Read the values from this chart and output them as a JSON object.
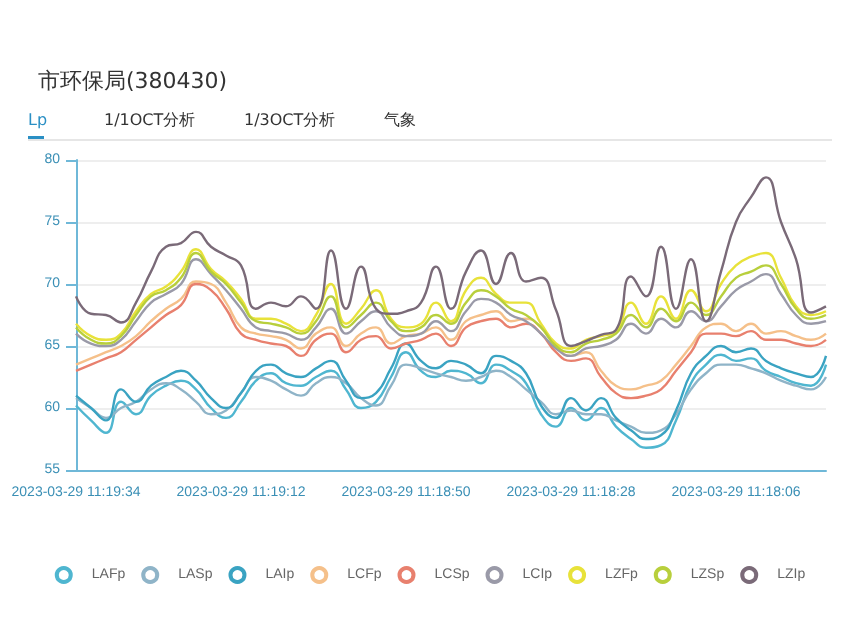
{
  "chart_data": {
    "type": "line",
    "title": "市环保局(380430)",
    "annotations": [
      "Lp",
      "1/1OCT分析",
      "1/3OCT分析",
      "气象"
    ],
    "categories": [
      "2023-03-29 11:19:34",
      null,
      null,
      null,
      null,
      null,
      null,
      null,
      null,
      null,
      null,
      "2023-03-29 11:19:12",
      null,
      null,
      null,
      null,
      null,
      null,
      null,
      null,
      null,
      null,
      "2023-03-29 11:18:50",
      null,
      null,
      null,
      null,
      null,
      null,
      null,
      null,
      null,
      null,
      "2023-03-29 11:18:28",
      null,
      null,
      null,
      null,
      null,
      null,
      null,
      null,
      null,
      null,
      "2023-03-29 11:18:06",
      null,
      null,
      null,
      null,
      null,
      null
    ],
    "ylim": [
      55,
      80
    ],
    "yticks": [
      55,
      60,
      65,
      70,
      75,
      80
    ],
    "grid": "y",
    "legend": "bottom",
    "series": [
      {
        "name": "LAFp",
        "color": "#4fb6d0",
        "values": [
          60.2,
          59.0,
          58.0,
          60.5,
          59.5,
          61.0,
          61.8,
          62.2,
          61.5,
          60.0,
          59.2,
          60.5,
          62.2,
          62.8,
          62.0,
          61.8,
          62.5,
          63.0,
          61.5,
          60.0,
          60.5,
          62.5,
          64.5,
          63.0,
          62.5,
          63.0,
          62.8,
          62.0,
          63.5,
          63.0,
          62.0,
          59.5,
          58.5,
          60.0,
          59.0,
          60.0,
          58.5,
          57.5,
          56.8,
          57.0,
          59.0,
          62.0,
          63.5,
          64.3,
          63.8,
          64.0,
          63.0,
          62.5,
          62.0,
          61.8,
          63.5
        ]
      },
      {
        "name": "LASp",
        "color": "#8fb4c8",
        "values": [
          60.8,
          60.0,
          59.2,
          60.0,
          60.5,
          61.5,
          62.0,
          61.5,
          60.5,
          59.5,
          59.8,
          61.2,
          62.5,
          62.2,
          61.5,
          61.0,
          62.0,
          62.5,
          62.0,
          60.8,
          60.2,
          61.8,
          63.5,
          63.2,
          62.8,
          62.5,
          62.2,
          62.5,
          63.0,
          62.5,
          61.5,
          60.5,
          59.5,
          59.8,
          59.5,
          59.5,
          59.0,
          58.5,
          58.0,
          58.2,
          59.5,
          61.5,
          62.8,
          63.5,
          63.5,
          63.2,
          62.8,
          62.2,
          61.8,
          61.5,
          62.5
        ]
      },
      {
        "name": "LAIp",
        "color": "#3aa3c2",
        "values": [
          61.0,
          60.0,
          59.0,
          61.5,
          60.5,
          61.8,
          62.5,
          63.0,
          62.2,
          60.8,
          60.0,
          61.2,
          63.0,
          63.5,
          62.8,
          62.5,
          63.2,
          63.8,
          62.2,
          60.8,
          61.2,
          63.2,
          65.2,
          63.8,
          63.2,
          63.8,
          63.5,
          62.8,
          64.2,
          63.8,
          62.8,
          60.2,
          59.2,
          60.8,
          59.8,
          60.8,
          59.2,
          58.2,
          57.5,
          57.8,
          59.8,
          62.8,
          64.2,
          65.0,
          64.5,
          64.8,
          63.8,
          63.2,
          62.8,
          62.5,
          64.2
        ]
      },
      {
        "name": "LCFp",
        "color": "#f5c08a",
        "values": [
          63.5,
          64.0,
          64.5,
          65.0,
          65.8,
          67.0,
          68.0,
          68.8,
          70.2,
          70.0,
          68.5,
          66.5,
          66.0,
          65.8,
          65.5,
          64.8,
          66.0,
          66.5,
          65.0,
          66.0,
          66.5,
          65.2,
          65.8,
          66.0,
          66.5,
          65.5,
          67.0,
          67.5,
          67.8,
          67.0,
          67.2,
          66.5,
          65.0,
          64.2,
          64.5,
          63.0,
          61.8,
          61.5,
          61.8,
          62.2,
          63.5,
          65.0,
          66.5,
          66.8,
          66.2,
          66.8,
          66.0,
          66.2,
          65.8,
          65.5,
          66.0
        ]
      },
      {
        "name": "LCSp",
        "color": "#e8806e",
        "values": [
          63.0,
          63.5,
          64.0,
          64.5,
          65.5,
          66.5,
          67.5,
          68.3,
          70.0,
          69.5,
          68.0,
          66.0,
          65.5,
          65.2,
          65.0,
          64.2,
          65.5,
          66.0,
          64.5,
          65.5,
          65.8,
          64.8,
          65.2,
          65.5,
          66.0,
          65.0,
          66.5,
          67.0,
          67.2,
          66.5,
          66.8,
          66.0,
          64.5,
          63.8,
          64.0,
          62.5,
          61.2,
          60.8,
          61.0,
          61.5,
          63.0,
          64.5,
          66.0,
          66.0,
          65.8,
          66.2,
          65.5,
          65.5,
          65.2,
          65.0,
          65.5
        ]
      },
      {
        "name": "LCIp",
        "color": "#9a9aa8",
        "values": [
          66.0,
          65.2,
          65.0,
          65.5,
          67.0,
          68.5,
          69.2,
          70.0,
          72.0,
          70.8,
          69.5,
          68.0,
          66.5,
          66.2,
          66.0,
          65.5,
          66.5,
          68.0,
          66.0,
          67.0,
          67.8,
          66.5,
          65.8,
          66.0,
          67.0,
          66.2,
          67.8,
          68.8,
          68.5,
          67.5,
          67.0,
          66.0,
          64.8,
          64.2,
          64.8,
          65.0,
          65.5,
          66.8,
          66.0,
          67.2,
          66.5,
          67.8,
          67.0,
          68.2,
          69.5,
          70.2,
          70.8,
          69.2,
          67.5,
          66.8,
          67.0
        ]
      },
      {
        "name": "LZFp",
        "color": "#e8e23a",
        "values": [
          66.8,
          65.8,
          65.5,
          66.0,
          67.8,
          69.2,
          69.8,
          71.0,
          72.8,
          71.2,
          70.2,
          68.8,
          67.2,
          67.2,
          66.8,
          66.2,
          67.5,
          70.0,
          66.8,
          68.0,
          69.5,
          67.2,
          66.5,
          66.8,
          68.5,
          67.0,
          69.5,
          70.5,
          69.2,
          68.5,
          68.5,
          66.8,
          65.2,
          64.8,
          65.5,
          65.8,
          66.2,
          68.5,
          66.8,
          69.0,
          67.2,
          69.5,
          67.8,
          70.0,
          71.5,
          72.2,
          72.5,
          70.5,
          68.2,
          67.5,
          67.8
        ]
      },
      {
        "name": "LZSp",
        "color": "#b8cf3c",
        "values": [
          66.5,
          65.5,
          65.2,
          65.8,
          67.5,
          69.0,
          69.5,
          70.5,
          72.5,
          71.0,
          70.0,
          68.5,
          67.0,
          66.8,
          66.5,
          66.0,
          67.0,
          69.0,
          66.5,
          67.5,
          68.5,
          67.0,
          66.2,
          66.5,
          67.5,
          66.8,
          68.5,
          69.5,
          69.0,
          68.0,
          67.5,
          66.5,
          65.0,
          64.5,
          65.2,
          65.5,
          66.0,
          67.5,
          66.5,
          68.0,
          67.0,
          68.5,
          67.5,
          69.0,
          70.5,
          71.0,
          71.5,
          70.0,
          68.0,
          67.2,
          67.5
        ]
      },
      {
        "name": "LZIp",
        "color": "#7a6a78",
        "values": [
          69.0,
          67.6,
          67.5,
          66.9,
          68.5,
          71.0,
          73.0,
          73.3,
          74.2,
          73.0,
          72.3,
          71.5,
          68.0,
          68.5,
          68.2,
          69.0,
          68.0,
          72.7,
          68.0,
          71.4,
          68.0,
          67.6,
          67.8,
          68.5,
          71.4,
          68.0,
          71.0,
          72.7,
          70.0,
          72.5,
          70.2,
          70.5,
          67.9,
          65.0,
          65.4,
          65.9,
          66.3,
          70.6,
          69.0,
          73.0,
          68.0,
          72.0,
          67.0,
          71.0,
          75.0,
          77.0,
          78.6,
          75.0,
          72.0,
          67.7,
          68.2
        ]
      }
    ]
  }
}
